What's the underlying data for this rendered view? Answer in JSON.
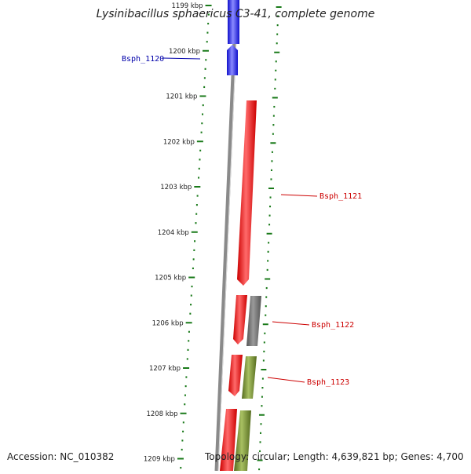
{
  "title": "Lysinibacillus sphaericus C3-41, complete genome",
  "accession": "Accession: NC_010382",
  "topology": "Topology: circular; Length: 4,639,821 bp; Genes: 4,700",
  "colors": {
    "backbone": "#8a8a8a",
    "tick": "#1a7a1a",
    "blue_gene": "#2222dd",
    "red_gene": "#ee1111",
    "gray_gene": "#666666",
    "olive_gene": "#6b8e23",
    "label_blue": "#0000aa",
    "label_red": "#cc0000"
  },
  "kbp_labels": [
    "1199 kbp",
    "1200 kbp",
    "1201 kbp",
    "1202 kbp",
    "1203 kbp",
    "1204 kbp",
    "1205 kbp",
    "1206 kbp",
    "1207 kbp",
    "1208 kbp",
    "1209 kbp"
  ],
  "gene_labels": [
    {
      "text": "Bsph_1120",
      "color": "label_blue"
    },
    {
      "text": "Bsph_1121",
      "color": "label_red"
    },
    {
      "text": "Bsph_1122",
      "color": "label_red"
    },
    {
      "text": "Bsph_1123",
      "color": "label_red"
    }
  ]
}
